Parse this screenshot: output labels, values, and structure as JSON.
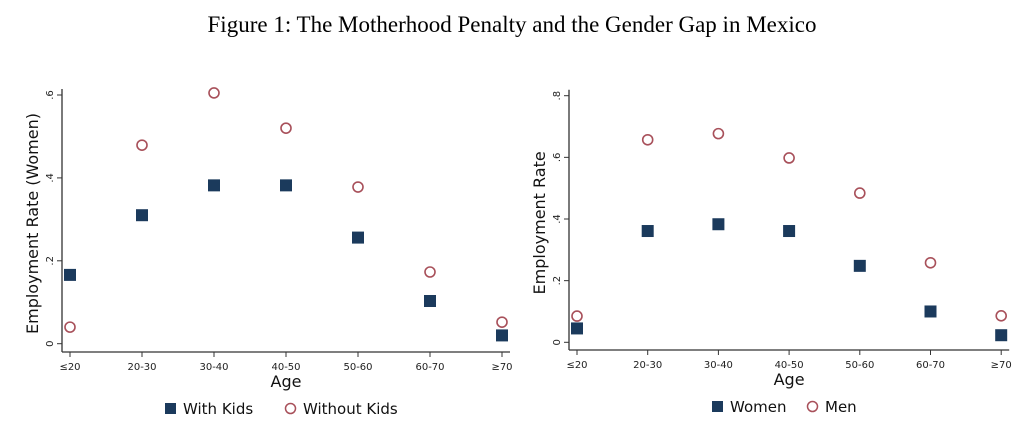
{
  "title": "Figure 1: The Motherhood Penalty and the Gender Gap in Mexico",
  "colors": {
    "filled": "#1b3a5c",
    "hollow": "#a8505a"
  },
  "chart_data": [
    {
      "type": "scatter",
      "categories": [
        "≤20",
        "20-30",
        "30-40",
        "40-50",
        "50-60",
        "60-70",
        "≥70"
      ],
      "xlabel": "Age",
      "ylabel": "Employment Rate (Women)",
      "ylim": [
        0,
        0.6
      ],
      "yticks": [
        {
          "v": 0,
          "label": "0"
        },
        {
          "v": 0.2,
          "label": ".2"
        },
        {
          "v": 0.4,
          "label": ".4"
        },
        {
          "v": 0.6,
          "label": ".6"
        }
      ],
      "legend_position": "bottom",
      "grid": false,
      "series": [
        {
          "name": "With Kids",
          "marker": "filled-square",
          "values": [
            0.166,
            0.31,
            0.382,
            0.382,
            0.256,
            0.103,
            0.02
          ]
        },
        {
          "name": "Without Kids",
          "marker": "hollow-circle",
          "values": [
            0.04,
            0.479,
            0.605,
            0.52,
            0.378,
            0.173,
            0.052
          ]
        }
      ]
    },
    {
      "type": "scatter",
      "categories": [
        "≤20",
        "20-30",
        "30-40",
        "40-50",
        "50-60",
        "60-70",
        "≥70"
      ],
      "xlabel": "Age",
      "ylabel": "Employment Rate",
      "ylim": [
        0,
        0.8
      ],
      "yticks": [
        {
          "v": 0,
          "label": "0"
        },
        {
          "v": 0.2,
          "label": ".2"
        },
        {
          "v": 0.4,
          "label": ".4"
        },
        {
          "v": 0.6,
          "label": ".6"
        },
        {
          "v": 0.8,
          "label": ".8"
        }
      ],
      "legend_position": "bottom",
      "grid": false,
      "series": [
        {
          "name": "Women",
          "marker": "filled-square",
          "values": [
            0.045,
            0.361,
            0.383,
            0.361,
            0.248,
            0.1,
            0.023
          ]
        },
        {
          "name": "Men",
          "marker": "hollow-circle",
          "values": [
            0.085,
            0.657,
            0.677,
            0.598,
            0.484,
            0.258,
            0.086
          ]
        }
      ]
    }
  ]
}
